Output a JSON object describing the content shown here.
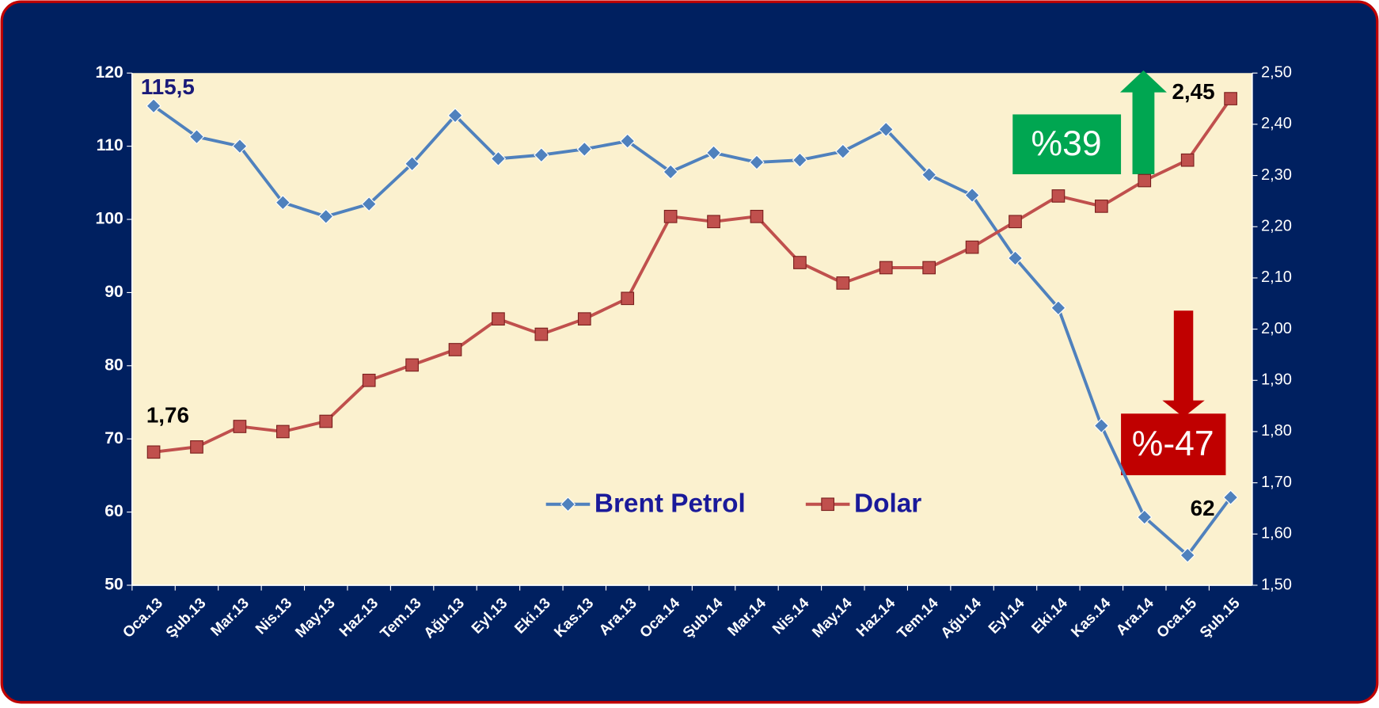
{
  "chart_data": {
    "type": "line",
    "categories": [
      "Oca.13",
      "Şub.13",
      "Mar.13",
      "Nis.13",
      "May.13",
      "Haz.13",
      "Tem.13",
      "Ağu.13",
      "Eyl.13",
      "Eki.13",
      "Kas.13",
      "Ara.13",
      "Oca.14",
      "Şub.14",
      "Mar.14",
      "Nis.14",
      "May.14",
      "Haz.14",
      "Tem.14",
      "Ağu.14",
      "Eyl.14",
      "Eki.14",
      "Kas.14",
      "Ara.14",
      "Oca.15",
      "Şub.15"
    ],
    "series": [
      {
        "name": "Brent Petrol",
        "color": "#4f81bd",
        "marker": "diamond",
        "values": [
          115.5,
          111.3,
          110.0,
          102.3,
          100.4,
          102.1,
          107.6,
          114.2,
          108.3,
          108.8,
          109.6,
          110.7,
          106.5,
          109.1,
          107.8,
          108.1,
          109.3,
          112.3,
          106.1,
          103.3,
          94.7,
          87.9,
          71.8,
          59.3,
          54.1,
          62
        ],
        "value_labels": [
          "115,5",
          null,
          null,
          null,
          null,
          null,
          null,
          null,
          null,
          null,
          null,
          null,
          null,
          null,
          null,
          null,
          null,
          null,
          null,
          null,
          null,
          null,
          null,
          null,
          null,
          "62"
        ]
      },
      {
        "name": "Dolar",
        "color": "#c0504d",
        "marker": "square",
        "axis": "y2",
        "values": [
          1.76,
          1.77,
          1.81,
          1.8,
          1.82,
          1.9,
          1.93,
          1.96,
          2.02,
          1.99,
          2.02,
          2.06,
          2.22,
          2.21,
          2.22,
          2.13,
          2.09,
          2.12,
          2.12,
          2.16,
          2.21,
          2.26,
          2.24,
          2.29,
          2.33,
          2.45
        ],
        "value_labels": [
          "1,76",
          null,
          null,
          null,
          null,
          null,
          null,
          null,
          null,
          null,
          null,
          null,
          null,
          null,
          null,
          null,
          null,
          null,
          null,
          null,
          null,
          null,
          null,
          null,
          null,
          "2,45"
        ]
      }
    ],
    "ylim": [
      50,
      120
    ],
    "yticks": [
      50,
      60,
      70,
      80,
      90,
      100,
      110,
      120
    ],
    "y2lim": [
      1.5,
      2.5
    ],
    "y2ticks": [
      {
        "value": 1.5,
        "label": "1,50"
      },
      {
        "value": 1.6,
        "label": "1,60"
      },
      {
        "value": 1.7,
        "label": "1,70"
      },
      {
        "value": 1.8,
        "label": "1,80"
      },
      {
        "value": 1.9,
        "label": "1,90"
      },
      {
        "value": 2.0,
        "label": "2,00"
      },
      {
        "value": 2.1,
        "label": "2,10"
      },
      {
        "value": 2.2,
        "label": "2,20"
      },
      {
        "value": 2.3,
        "label": "2,30"
      },
      {
        "value": 2.4,
        "label": "2,40"
      },
      {
        "value": 2.5,
        "label": "2,50"
      }
    ],
    "legend": "center",
    "annotations": [
      {
        "text": "%39",
        "color": "#00a651"
      },
      {
        "text": "%-47",
        "color": "#c00000"
      }
    ]
  }
}
